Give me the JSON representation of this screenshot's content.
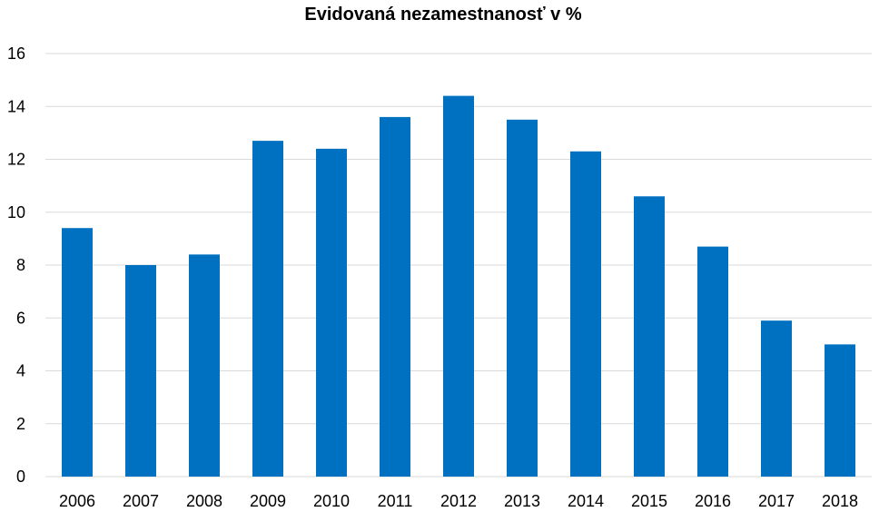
{
  "chart_data": {
    "type": "bar",
    "title": "Evidovaná nezamestnanosť v %",
    "xlabel": "",
    "ylabel": "",
    "categories": [
      "2006",
      "2007",
      "2008",
      "2009",
      "2010",
      "2011",
      "2012",
      "2013",
      "2014",
      "2015",
      "2016",
      "2017",
      "2018"
    ],
    "values": [
      9.4,
      8.0,
      8.4,
      12.7,
      12.4,
      13.6,
      14.4,
      13.5,
      12.3,
      10.6,
      8.7,
      5.9,
      5.0
    ],
    "ylim": [
      0,
      16
    ],
    "yticks": [
      "0",
      "2",
      "4",
      "6",
      "8",
      "10",
      "12",
      "14",
      "16"
    ],
    "grid": true,
    "legend": "none",
    "bar_color": "#0070C0"
  }
}
